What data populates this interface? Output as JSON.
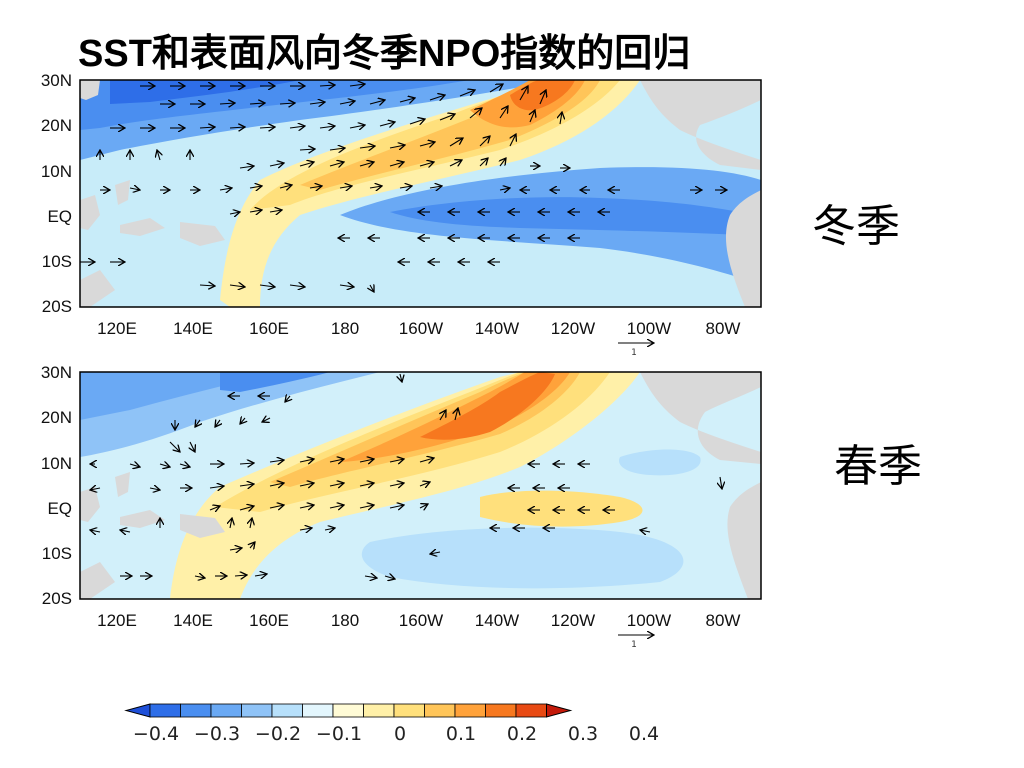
{
  "title": "SST和表面风向冬季NPO指数的回归",
  "map": {
    "y_labels": [
      "30N",
      "20N",
      "10N",
      "EQ",
      "10S",
      "20S"
    ],
    "x_labels": [
      "120E",
      "140E",
      "160E",
      "180",
      "160W",
      "140W",
      "120W",
      "100W",
      "80W"
    ],
    "reference_vector_label": "1"
  },
  "panels": [
    {
      "id": "winter",
      "label": "冬季"
    },
    {
      "id": "spring",
      "label": "春季"
    }
  ],
  "colorbar": {
    "ticks": [
      "−0.4",
      "−0.3",
      "−0.2",
      "−0.1",
      "0",
      "0.1",
      "0.2",
      "0.3",
      "0.4"
    ],
    "colors": [
      "#1e4fd8",
      "#2e6ee8",
      "#4a8ef0",
      "#6aa9f4",
      "#8fc3f7",
      "#b7e0fb",
      "#e3f6fd",
      "#fffbd6",
      "#fff0a8",
      "#ffe07c",
      "#ffc559",
      "#ffa23a",
      "#f7781f",
      "#e84a13",
      "#c41a0a"
    ],
    "land_color": "#d9d9d9"
  }
}
